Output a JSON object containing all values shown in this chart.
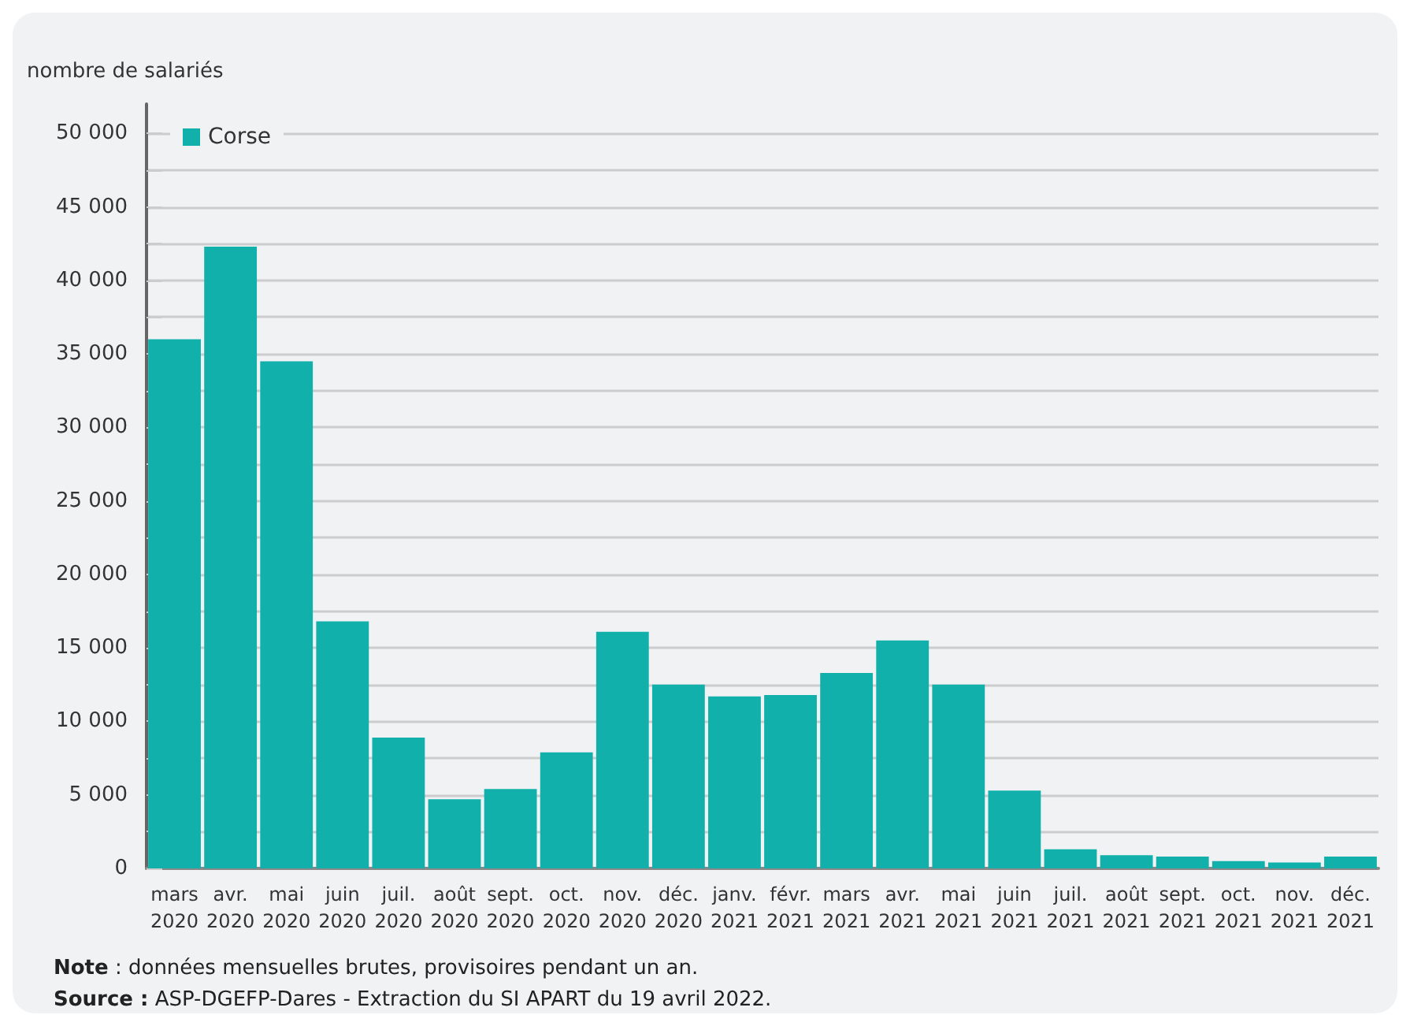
{
  "chart_data": {
    "type": "bar",
    "ylabel": "nombre de salariés",
    "categories": [
      "mars 2020",
      "avr. 2020",
      "mai 2020",
      "juin 2020",
      "juil. 2020",
      "août 2020",
      "sept. 2020",
      "oct. 2020",
      "nov. 2020",
      "déc. 2020",
      "janv. 2021",
      "févr. 2021",
      "mars 2021",
      "avr. 2021",
      "mai 2021",
      "juin 2021",
      "juil. 2021",
      "août 2021",
      "sept. 2021",
      "oct. 2021",
      "nov. 2021",
      "déc. 2021"
    ],
    "series": [
      {
        "name": "Corse",
        "color": "#11b0ab",
        "values": [
          36000,
          42300,
          34500,
          16800,
          8900,
          4700,
          5400,
          7900,
          16100,
          12500,
          11700,
          11800,
          13300,
          15500,
          12500,
          5300,
          1300,
          900,
          800,
          500,
          400,
          800
        ]
      }
    ],
    "ylim": [
      0,
      52000
    ],
    "yticks": [
      {
        "value": 0,
        "label": "0"
      },
      {
        "value": 2500,
        "label": null
      },
      {
        "value": 5000,
        "label": "5 000"
      },
      {
        "value": 7500,
        "label": null
      },
      {
        "value": 10000,
        "label": "10 000"
      },
      {
        "value": 12500,
        "label": null
      },
      {
        "value": 15000,
        "label": "15 000"
      },
      {
        "value": 17500,
        "label": null
      },
      {
        "value": 20000,
        "label": "20 000"
      },
      {
        "value": 22500,
        "label": null
      },
      {
        "value": 25000,
        "label": "25 000"
      },
      {
        "value": 27500,
        "label": null
      },
      {
        "value": 30000,
        "label": "30 000"
      },
      {
        "value": 32500,
        "label": null
      },
      {
        "value": 35000,
        "label": "35 000"
      },
      {
        "value": 37500,
        "label": null
      },
      {
        "value": 40000,
        "label": "40 000"
      },
      {
        "value": 42500,
        "label": null
      },
      {
        "value": 45000,
        "label": "45 000"
      },
      {
        "value": 47500,
        "label": null
      },
      {
        "value": 50000,
        "label": "50 000"
      }
    ],
    "grid": "y",
    "legend": "top left",
    "annotations": [
      "**Note** : données mensuelles brutes, provisoires pendant un an.",
      "**Source :** ASP-DGEFP-Dares - Extraction du SI APART du 19 avril 2022."
    ]
  }
}
